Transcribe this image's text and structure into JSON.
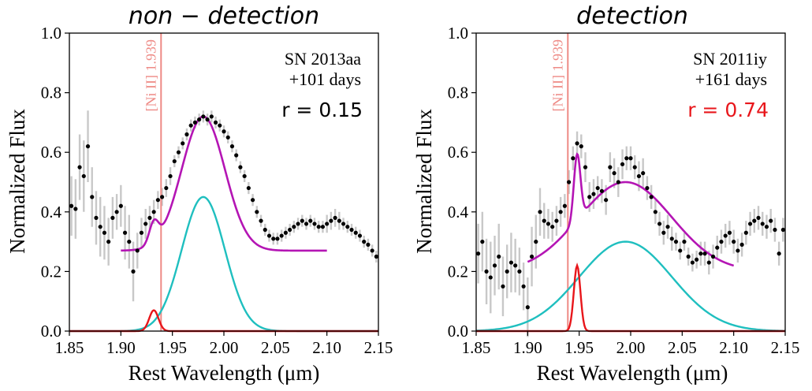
{
  "chart_data": [
    {
      "type": "line",
      "title": "non − detection",
      "xlabel": "Rest Wavelength (μm)",
      "ylabel": "Normalized Flux",
      "xlim": [
        1.85,
        2.15
      ],
      "ylim": [
        0.0,
        1.0
      ],
      "xticks": [
        "1.85",
        "1.90",
        "1.95",
        "2.00",
        "2.05",
        "2.10",
        "2.15"
      ],
      "yticks": [
        "0.0",
        "0.2",
        "0.4",
        "0.6",
        "0.8",
        "1.0"
      ],
      "annotation": {
        "object": "SN 2013aa",
        "epoch": "+101 days",
        "r_text": "r = 0.15",
        "r_color": "#000000"
      },
      "line_marker": {
        "label": "[Ni II] 1.939",
        "x": 1.939,
        "color": "#ee8a85"
      },
      "components": {
        "total": {
          "color": "#b415b4",
          "baseline": 0.27,
          "x_range": [
            1.9,
            2.1
          ]
        },
        "broad": {
          "color": "#1fbfbf",
          "amp": 0.45,
          "center": 1.98,
          "sigma": 0.021
        },
        "narrow": {
          "color": "#e8161b",
          "amp": 0.07,
          "center": 1.932,
          "sigma": 0.0045
        }
      },
      "series": [
        {
          "x": [
            1.852,
            1.856,
            1.86,
            1.864,
            1.868,
            1.872,
            1.876,
            1.88,
            1.884,
            1.888,
            1.892,
            1.896,
            1.9,
            1.904,
            1.908,
            1.912,
            1.916,
            1.92,
            1.924,
            1.928,
            1.932,
            1.936,
            1.94,
            1.944,
            1.948,
            1.952,
            1.956,
            1.96,
            1.964,
            1.968,
            1.972,
            1.976,
            1.98,
            1.984,
            1.988,
            1.992,
            1.996,
            2.0,
            2.004,
            2.008,
            2.012,
            2.016,
            2.02,
            2.024,
            2.028,
            2.032,
            2.036,
            2.04,
            2.044,
            2.048,
            2.052,
            2.056,
            2.06,
            2.064,
            2.068,
            2.072,
            2.076,
            2.08,
            2.084,
            2.088,
            2.092,
            2.096,
            2.1,
            2.104,
            2.108,
            2.112,
            2.116,
            2.12,
            2.124,
            2.128,
            2.132,
            2.136,
            2.14,
            2.144,
            2.148
          ],
          "y": [
            0.42,
            0.41,
            0.55,
            0.52,
            0.62,
            0.45,
            0.38,
            0.35,
            0.33,
            0.3,
            0.38,
            0.4,
            0.42,
            0.33,
            0.3,
            0.2,
            0.27,
            0.33,
            0.36,
            0.38,
            0.4,
            0.44,
            0.45,
            0.48,
            0.52,
            0.57,
            0.6,
            0.63,
            0.66,
            0.69,
            0.7,
            0.71,
            0.72,
            0.71,
            0.72,
            0.7,
            0.69,
            0.67,
            0.65,
            0.62,
            0.59,
            0.55,
            0.52,
            0.48,
            0.44,
            0.4,
            0.37,
            0.34,
            0.32,
            0.31,
            0.31,
            0.32,
            0.33,
            0.34,
            0.35,
            0.36,
            0.37,
            0.36,
            0.37,
            0.36,
            0.35,
            0.35,
            0.36,
            0.37,
            0.38,
            0.37,
            0.36,
            0.35,
            0.34,
            0.33,
            0.32,
            0.3,
            0.29,
            0.27,
            0.25
          ],
          "err": [
            0.1,
            0.1,
            0.11,
            0.12,
            0.12,
            0.1,
            0.09,
            0.1,
            0.09,
            0.08,
            0.07,
            0.06,
            0.07,
            0.09,
            0.09,
            0.1,
            0.06,
            0.05,
            0.05,
            0.04,
            0.04,
            0.03,
            0.03,
            0.03,
            0.03,
            0.02,
            0.02,
            0.02,
            0.02,
            0.02,
            0.02,
            0.02,
            0.02,
            0.02,
            0.02,
            0.02,
            0.02,
            0.02,
            0.02,
            0.02,
            0.02,
            0.02,
            0.02,
            0.02,
            0.02,
            0.02,
            0.02,
            0.02,
            0.02,
            0.02,
            0.02,
            0.02,
            0.02,
            0.02,
            0.02,
            0.02,
            0.02,
            0.02,
            0.02,
            0.02,
            0.02,
            0.02,
            0.03,
            0.03,
            0.03,
            0.03,
            0.02,
            0.02,
            0.02,
            0.02,
            0.02,
            0.02,
            0.02,
            0.02,
            0.02
          ]
        }
      ]
    },
    {
      "type": "line",
      "title": "detection",
      "xlabel": "Rest Wavelength (μm)",
      "ylabel": "Normalized Flux",
      "xlim": [
        1.85,
        2.15
      ],
      "ylim": [
        0.0,
        1.0
      ],
      "xticks": [
        "1.85",
        "1.90",
        "1.95",
        "2.00",
        "2.05",
        "2.10",
        "2.15"
      ],
      "yticks": [
        "0.0",
        "0.2",
        "0.4",
        "0.6",
        "0.8",
        "1.0"
      ],
      "annotation": {
        "object": "SN 2011iy",
        "epoch": "+161 days",
        "r_text": "r = 0.74",
        "r_color": "#e8161b"
      },
      "line_marker": {
        "label": "[Ni II] 1.939",
        "x": 1.939,
        "color": "#ee8a85"
      },
      "components": {
        "total": {
          "color": "#b415b4",
          "baseline": 0.2,
          "x_range": [
            1.9,
            2.1
          ]
        },
        "broad": {
          "color": "#1fbfbf",
          "amp": 0.3,
          "center": 1.995,
          "sigma": 0.045
        },
        "narrow": {
          "color": "#e8161b",
          "amp": 0.22,
          "center": 1.948,
          "sigma": 0.0032
        }
      },
      "series": [
        {
          "x": [
            1.852,
            1.856,
            1.86,
            1.864,
            1.868,
            1.872,
            1.876,
            1.88,
            1.884,
            1.888,
            1.892,
            1.896,
            1.9,
            1.904,
            1.908,
            1.912,
            1.916,
            1.92,
            1.924,
            1.928,
            1.932,
            1.936,
            1.94,
            1.944,
            1.948,
            1.952,
            1.956,
            1.96,
            1.964,
            1.968,
            1.972,
            1.976,
            1.98,
            1.984,
            1.988,
            1.992,
            1.996,
            2.0,
            2.004,
            2.008,
            2.012,
            2.016,
            2.02,
            2.024,
            2.028,
            2.032,
            2.036,
            2.04,
            2.044,
            2.048,
            2.052,
            2.056,
            2.06,
            2.064,
            2.068,
            2.072,
            2.076,
            2.08,
            2.084,
            2.088,
            2.092,
            2.096,
            2.1,
            2.104,
            2.108,
            2.112,
            2.116,
            2.12,
            2.124,
            2.128,
            2.132,
            2.136,
            2.14,
            2.144,
            2.148
          ],
          "y": [
            0.26,
            0.3,
            0.2,
            0.18,
            0.22,
            0.25,
            0.15,
            0.2,
            0.23,
            0.22,
            0.2,
            0.15,
            0.08,
            0.25,
            0.3,
            0.4,
            0.37,
            0.36,
            0.35,
            0.37,
            0.4,
            0.42,
            0.5,
            0.58,
            0.63,
            0.62,
            0.55,
            0.45,
            0.46,
            0.48,
            0.47,
            0.44,
            0.55,
            0.53,
            0.5,
            0.56,
            0.58,
            0.58,
            0.55,
            0.52,
            0.53,
            0.48,
            0.45,
            0.4,
            0.36,
            0.33,
            0.35,
            0.31,
            0.3,
            0.27,
            0.3,
            0.25,
            0.23,
            0.24,
            0.26,
            0.26,
            0.23,
            0.25,
            0.28,
            0.3,
            0.32,
            0.33,
            0.3,
            0.27,
            0.29,
            0.33,
            0.36,
            0.37,
            0.38,
            0.36,
            0.35,
            0.37,
            0.34,
            0.26,
            0.34
          ],
          "err": [
            0.1,
            0.1,
            0.11,
            0.12,
            0.1,
            0.11,
            0.1,
            0.09,
            0.1,
            0.09,
            0.08,
            0.08,
            0.1,
            0.1,
            0.09,
            0.08,
            0.06,
            0.05,
            0.05,
            0.05,
            0.05,
            0.04,
            0.04,
            0.04,
            0.04,
            0.04,
            0.05,
            0.05,
            0.05,
            0.04,
            0.04,
            0.05,
            0.05,
            0.05,
            0.05,
            0.05,
            0.04,
            0.04,
            0.04,
            0.05,
            0.05,
            0.04,
            0.04,
            0.04,
            0.04,
            0.04,
            0.04,
            0.04,
            0.03,
            0.03,
            0.03,
            0.03,
            0.03,
            0.03,
            0.04,
            0.04,
            0.04,
            0.04,
            0.04,
            0.04,
            0.04,
            0.04,
            0.04,
            0.04,
            0.04,
            0.04,
            0.04,
            0.04,
            0.04,
            0.04,
            0.04,
            0.04,
            0.04,
            0.04,
            0.04
          ]
        }
      ]
    }
  ]
}
